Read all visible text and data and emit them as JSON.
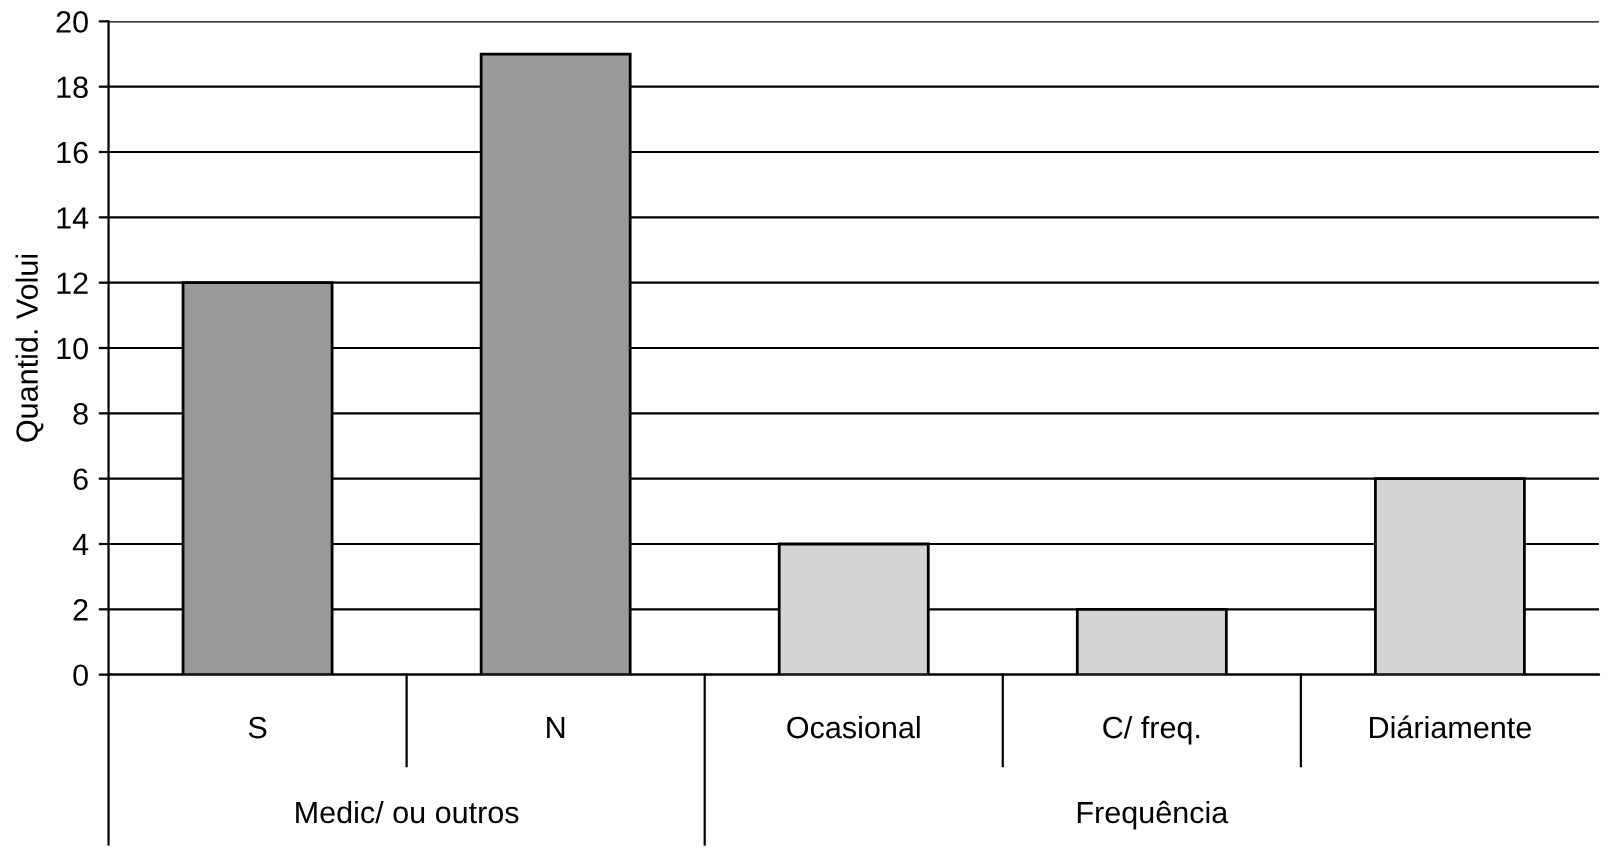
{
  "chart_data": {
    "type": "bar",
    "ylabel": "Quantid. Volui",
    "categories": [
      "S",
      "N",
      "Ocasional",
      "C/ freq.",
      "Diáriamente"
    ],
    "values": [
      12,
      19,
      4,
      2,
      6
    ],
    "colors": [
      "#999999",
      "#999999",
      "#d4d4d4",
      "#d4d4d4",
      "#d4d4d4"
    ],
    "annotations": [
      "Medic/ ou outros",
      "Frequência"
    ],
    "ylim": [
      0,
      20
    ],
    "yticks": [
      0,
      2,
      4,
      6,
      8,
      10,
      12,
      14,
      16,
      18,
      20
    ],
    "grid": "y",
    "legend": false
  }
}
